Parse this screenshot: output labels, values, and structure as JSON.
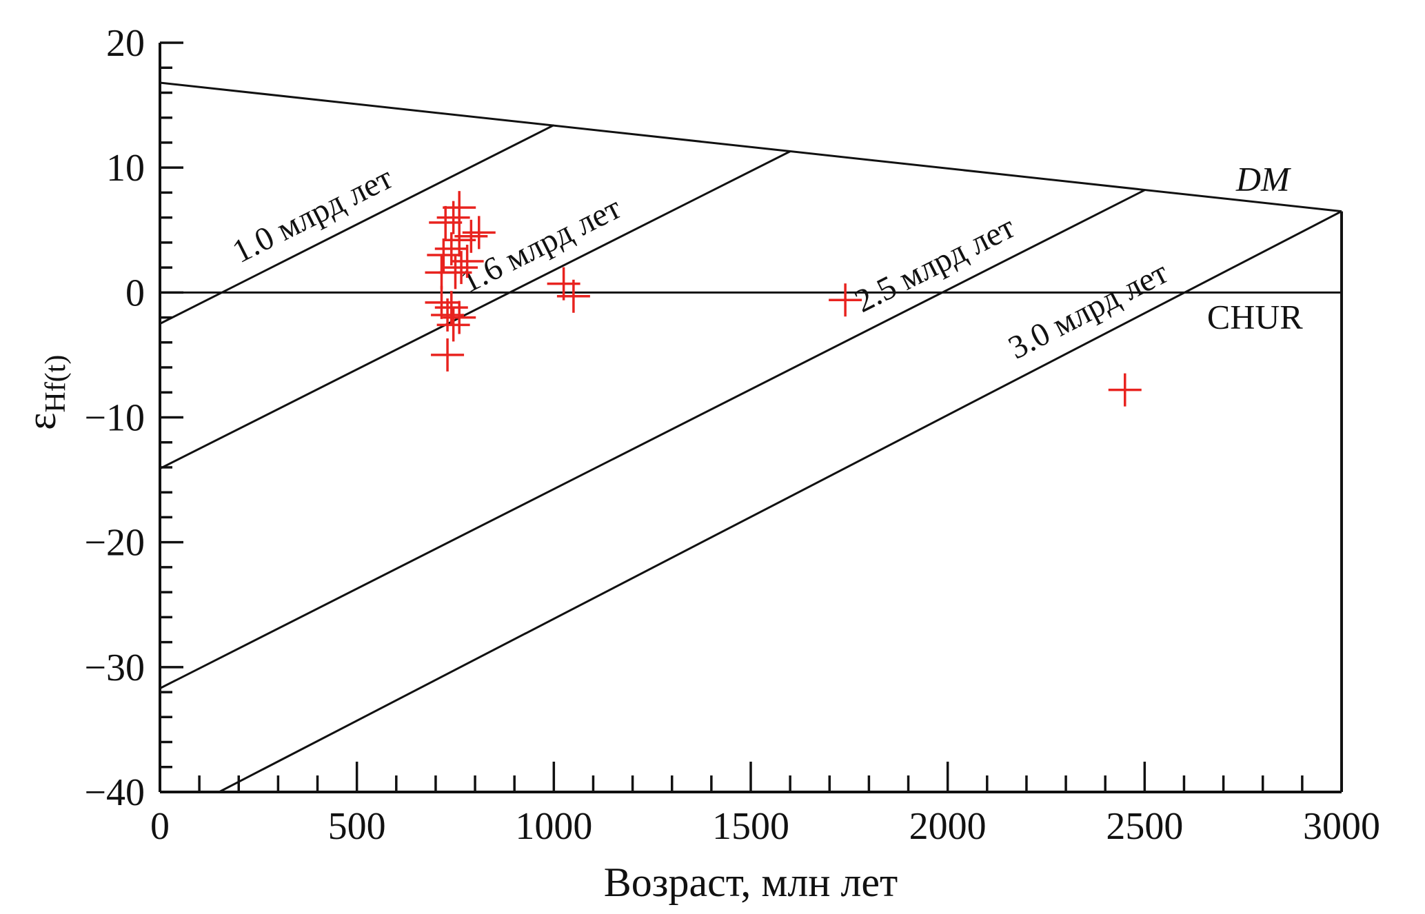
{
  "chart_data": {
    "type": "scatter",
    "title": "",
    "xlabel": "Возраст, млн лет",
    "ylabel_main": "ε",
    "ylabel_sub": "Hf(t)",
    "xlim": [
      0,
      3000
    ],
    "ylim": [
      -40,
      20
    ],
    "x_ticks": [
      0,
      500,
      1000,
      1500,
      2000,
      2500,
      3000
    ],
    "x_tick_labels": [
      "0",
      "500",
      "1000",
      "1500",
      "2000",
      "2500",
      "3000"
    ],
    "y_ticks": [
      20,
      10,
      0,
      -10,
      -20,
      -30,
      -40
    ],
    "y_tick_labels": [
      "20",
      "10",
      "0",
      "−10",
      "−20",
      "−30",
      "−40"
    ],
    "grid": false,
    "colors": {
      "points": "#e8231f",
      "lines": "#111111"
    },
    "reference_lines": [
      {
        "label": "DM",
        "x": [
          0,
          3000
        ],
        "y": [
          16.8,
          6.5
        ]
      },
      {
        "label": "CHUR",
        "x": [
          0,
          3000
        ],
        "y": [
          0,
          0
        ]
      }
    ],
    "evolution_lines": [
      {
        "label": "1.0 млрд лет",
        "x": [
          0,
          1000
        ],
        "y": [
          -2.5,
          13.4
        ]
      },
      {
        "label": "1.6 млрд лет",
        "x": [
          0,
          1600
        ],
        "y": [
          -14.1,
          11.3
        ]
      },
      {
        "label": "2.5 млрд лет",
        "x": [
          0,
          2500
        ],
        "y": [
          -31.7,
          8.2
        ]
      },
      {
        "label": "3.0 млрд лет",
        "x": [
          150,
          3000
        ],
        "y": [
          -40,
          6.5
        ]
      }
    ],
    "series": [
      {
        "marker": "plus",
        "points": [
          {
            "x": 760,
            "y": 6.8
          },
          {
            "x": 745,
            "y": 6.0
          },
          {
            "x": 725,
            "y": 5.6
          },
          {
            "x": 810,
            "y": 4.8
          },
          {
            "x": 790,
            "y": 4.5
          },
          {
            "x": 760,
            "y": 4.2
          },
          {
            "x": 740,
            "y": 3.5
          },
          {
            "x": 720,
            "y": 3.0
          },
          {
            "x": 780,
            "y": 2.5
          },
          {
            "x": 765,
            "y": 2.0
          },
          {
            "x": 750,
            "y": 1.6
          },
          {
            "x": 715,
            "y": 1.6
          },
          {
            "x": 1025,
            "y": 0.7
          },
          {
            "x": 1050,
            "y": -0.3
          },
          {
            "x": 1740,
            "y": -0.6
          },
          {
            "x": 715,
            "y": -0.8
          },
          {
            "x": 740,
            "y": -1.2
          },
          {
            "x": 730,
            "y": -1.8
          },
          {
            "x": 760,
            "y": -2.0
          },
          {
            "x": 745,
            "y": -2.6
          },
          {
            "x": 730,
            "y": -5.0
          },
          {
            "x": 2450,
            "y": -7.8
          }
        ]
      }
    ]
  }
}
